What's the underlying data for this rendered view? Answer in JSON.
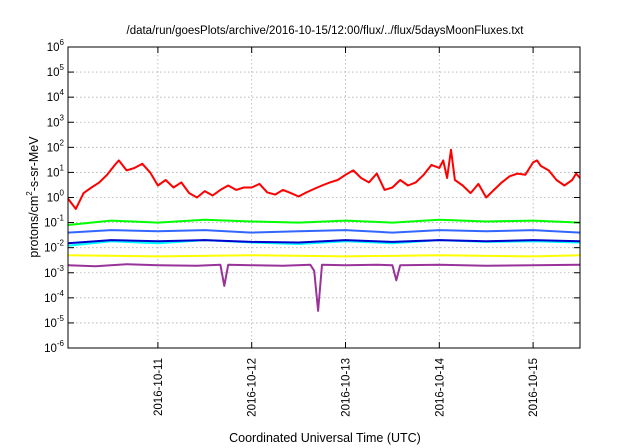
{
  "chart_data": {
    "type": "line",
    "title": "/data/run/goesPlots/archive/2016-10-15/12:00/flux/../flux/5daysMoonFluxes.txt",
    "xlabel": "Coordinated Universal Time (UTC)",
    "ylabel": {
      "base": "protons/cm",
      "sup": "2",
      "rest": "-s-sr-MeV"
    },
    "x_range": [
      "2016-10-10T01:00",
      "2016-10-15T12:00"
    ],
    "x_ticks": [
      {
        "value": "2016-10-11T00:00",
        "label": "2016-10-11"
      },
      {
        "value": "2016-10-12T00:00",
        "label": "2016-10-12"
      },
      {
        "value": "2016-10-13T00:00",
        "label": "2016-10-13"
      },
      {
        "value": "2016-10-14T00:00",
        "label": "2016-10-14"
      },
      {
        "value": "2016-10-15T00:00",
        "label": "2016-10-15"
      }
    ],
    "y_scale": "log",
    "y_range": [
      1e-06,
      1000000.0
    ],
    "y_ticks": [
      {
        "value": 1000000.0,
        "base": "10",
        "exp": "6"
      },
      {
        "value": 100000.0,
        "base": "10",
        "exp": "5"
      },
      {
        "value": 10000.0,
        "base": "10",
        "exp": "4"
      },
      {
        "value": 1000.0,
        "base": "10",
        "exp": "3"
      },
      {
        "value": 100.0,
        "base": "10",
        "exp": "2"
      },
      {
        "value": 10.0,
        "base": "10",
        "exp": "1"
      },
      {
        "value": 1.0,
        "base": "10",
        "exp": "0"
      },
      {
        "value": 0.1,
        "base": "10",
        "exp": "-1"
      },
      {
        "value": 0.01,
        "base": "10",
        "exp": "-2"
      },
      {
        "value": 0.001,
        "base": "10",
        "exp": "-3"
      },
      {
        "value": 0.0001,
        "base": "10",
        "exp": "-4"
      },
      {
        "value": 1e-05,
        "base": "10",
        "exp": "-5"
      },
      {
        "value": 1e-06,
        "base": "10",
        "exp": "-6"
      }
    ],
    "grid": true,
    "legend": "none",
    "series": [
      {
        "color": "#ff0000",
        "points": [
          [
            "2016-10-10T01:00",
            0.9
          ],
          [
            "2016-10-10T03:00",
            0.35
          ],
          [
            "2016-10-10T05:00",
            1.5
          ],
          [
            "2016-10-10T07:00",
            2.5
          ],
          [
            "2016-10-10T09:00",
            4
          ],
          [
            "2016-10-10T11:00",
            8
          ],
          [
            "2016-10-10T13:00",
            20
          ],
          [
            "2016-10-10T14:00",
            30
          ],
          [
            "2016-10-10T16:00",
            12
          ],
          [
            "2016-10-10T18:00",
            15
          ],
          [
            "2016-10-10T20:00",
            22
          ],
          [
            "2016-10-10T22:00",
            10
          ],
          [
            "2016-10-11T00:00",
            3
          ],
          [
            "2016-10-11T02:00",
            5
          ],
          [
            "2016-10-11T04:00",
            2.5
          ],
          [
            "2016-10-11T06:00",
            4
          ],
          [
            "2016-10-11T08:00",
            1.5
          ],
          [
            "2016-10-11T10:00",
            1.0
          ],
          [
            "2016-10-11T12:00",
            1.8
          ],
          [
            "2016-10-11T14:00",
            1.2
          ],
          [
            "2016-10-11T16:00",
            2.0
          ],
          [
            "2016-10-11T18:00",
            3
          ],
          [
            "2016-10-11T20:00",
            2
          ],
          [
            "2016-10-11T22:00",
            2.5
          ],
          [
            "2016-10-12T00:00",
            2.5
          ],
          [
            "2016-10-12T02:00",
            3.5
          ],
          [
            "2016-10-12T04:00",
            1.6
          ],
          [
            "2016-10-12T06:00",
            1.3
          ],
          [
            "2016-10-12T08:00",
            2.0
          ],
          [
            "2016-10-12T10:00",
            1.5
          ],
          [
            "2016-10-12T12:00",
            1.1
          ],
          [
            "2016-10-12T14:00",
            1.6
          ],
          [
            "2016-10-12T16:00",
            2.2
          ],
          [
            "2016-10-12T18:00",
            3
          ],
          [
            "2016-10-12T20:00",
            4
          ],
          [
            "2016-10-12T22:00",
            5
          ],
          [
            "2016-10-13T00:00",
            8
          ],
          [
            "2016-10-13T02:00",
            12
          ],
          [
            "2016-10-13T04:00",
            6
          ],
          [
            "2016-10-13T06:00",
            4
          ],
          [
            "2016-10-13T08:00",
            9
          ],
          [
            "2016-10-13T10:00",
            2
          ],
          [
            "2016-10-13T12:00",
            2.5
          ],
          [
            "2016-10-13T14:00",
            5
          ],
          [
            "2016-10-13T16:00",
            3
          ],
          [
            "2016-10-13T18:00",
            4
          ],
          [
            "2016-10-13T20:00",
            8
          ],
          [
            "2016-10-13T22:00",
            20
          ],
          [
            "2016-10-14T00:00",
            15
          ],
          [
            "2016-10-14T01:00",
            30
          ],
          [
            "2016-10-14T02:00",
            6
          ],
          [
            "2016-10-14T03:00",
            80
          ],
          [
            "2016-10-14T04:00",
            5
          ],
          [
            "2016-10-14T06:00",
            3
          ],
          [
            "2016-10-14T08:00",
            1.5
          ],
          [
            "2016-10-14T10:00",
            3.5
          ],
          [
            "2016-10-14T12:00",
            1.0
          ],
          [
            "2016-10-14T14:00",
            2.0
          ],
          [
            "2016-10-14T16:00",
            4
          ],
          [
            "2016-10-14T18:00",
            7
          ],
          [
            "2016-10-14T20:00",
            9
          ],
          [
            "2016-10-14T22:00",
            8
          ],
          [
            "2016-10-15T00:00",
            25
          ],
          [
            "2016-10-15T01:00",
            30
          ],
          [
            "2016-10-15T02:00",
            18
          ],
          [
            "2016-10-15T04:00",
            12
          ],
          [
            "2016-10-15T06:00",
            5
          ],
          [
            "2016-10-15T08:00",
            3
          ],
          [
            "2016-10-15T10:00",
            5
          ],
          [
            "2016-10-15T11:00",
            9
          ],
          [
            "2016-10-15T12:00",
            6
          ]
        ]
      },
      {
        "color": "#00ff00",
        "points": [
          [
            "2016-10-10T01:00",
            0.08
          ],
          [
            "2016-10-10T12:00",
            0.12
          ],
          [
            "2016-10-11T00:00",
            0.1
          ],
          [
            "2016-10-11T12:00",
            0.13
          ],
          [
            "2016-10-12T00:00",
            0.11
          ],
          [
            "2016-10-12T12:00",
            0.1
          ],
          [
            "2016-10-13T00:00",
            0.12
          ],
          [
            "2016-10-13T12:00",
            0.1
          ],
          [
            "2016-10-14T00:00",
            0.13
          ],
          [
            "2016-10-14T12:00",
            0.11
          ],
          [
            "2016-10-15T00:00",
            0.12
          ],
          [
            "2016-10-15T12:00",
            0.1
          ]
        ]
      },
      {
        "color": "#00ffff",
        "points": [
          [
            "2016-10-10T01:00",
            0.012
          ],
          [
            "2016-10-10T12:00",
            0.018
          ],
          [
            "2016-10-11T00:00",
            0.015
          ],
          [
            "2016-10-11T12:00",
            0.02
          ],
          [
            "2016-10-12T00:00",
            0.016
          ],
          [
            "2016-10-12T12:00",
            0.014
          ],
          [
            "2016-10-13T00:00",
            0.018
          ],
          [
            "2016-10-13T12:00",
            0.015
          ],
          [
            "2016-10-14T00:00",
            0.02
          ],
          [
            "2016-10-14T12:00",
            0.017
          ],
          [
            "2016-10-15T00:00",
            0.018
          ],
          [
            "2016-10-15T12:00",
            0.016
          ]
        ]
      },
      {
        "color": "#3366ff",
        "points": [
          [
            "2016-10-10T01:00",
            0.04
          ],
          [
            "2016-10-10T12:00",
            0.05
          ],
          [
            "2016-10-11T00:00",
            0.045
          ],
          [
            "2016-10-11T12:00",
            0.05
          ],
          [
            "2016-10-12T00:00",
            0.04
          ],
          [
            "2016-10-12T12:00",
            0.045
          ],
          [
            "2016-10-13T00:00",
            0.05
          ],
          [
            "2016-10-13T12:00",
            0.04
          ],
          [
            "2016-10-14T00:00",
            0.05
          ],
          [
            "2016-10-14T12:00",
            0.045
          ],
          [
            "2016-10-15T00:00",
            0.05
          ],
          [
            "2016-10-15T12:00",
            0.04
          ]
        ]
      },
      {
        "color": "#0000cc",
        "points": [
          [
            "2016-10-10T01:00",
            0.015
          ],
          [
            "2016-10-10T12:00",
            0.02
          ],
          [
            "2016-10-11T00:00",
            0.018
          ],
          [
            "2016-10-11T12:00",
            0.02
          ],
          [
            "2016-10-12T00:00",
            0.017
          ],
          [
            "2016-10-12T12:00",
            0.016
          ],
          [
            "2016-10-13T00:00",
            0.02
          ],
          [
            "2016-10-13T12:00",
            0.017
          ],
          [
            "2016-10-14T00:00",
            0.02
          ],
          [
            "2016-10-14T12:00",
            0.018
          ],
          [
            "2016-10-15T00:00",
            0.02
          ],
          [
            "2016-10-15T12:00",
            0.018
          ]
        ]
      },
      {
        "color": "#ffff00",
        "points": [
          [
            "2016-10-10T01:00",
            0.005
          ],
          [
            "2016-10-11T00:00",
            0.0045
          ],
          [
            "2016-10-12T00:00",
            0.005
          ],
          [
            "2016-10-13T00:00",
            0.0045
          ],
          [
            "2016-10-14T00:00",
            0.005
          ],
          [
            "2016-10-15T00:00",
            0.0045
          ],
          [
            "2016-10-15T12:00",
            0.005
          ]
        ]
      },
      {
        "color": "#993399",
        "points": [
          [
            "2016-10-10T01:00",
            0.002
          ],
          [
            "2016-10-10T08:00",
            0.0018
          ],
          [
            "2016-10-10T16:00",
            0.0022
          ],
          [
            "2016-10-11T00:00",
            0.002
          ],
          [
            "2016-10-11T10:00",
            0.0019
          ],
          [
            "2016-10-11T16:00",
            0.0021
          ],
          [
            "2016-10-11T17:00",
            0.0003
          ],
          [
            "2016-10-11T18:00",
            0.0021
          ],
          [
            "2016-10-12T00:00",
            0.002
          ],
          [
            "2016-10-12T08:00",
            0.0019
          ],
          [
            "2016-10-12T15:00",
            0.0021
          ],
          [
            "2016-10-12T16:00",
            0.0012
          ],
          [
            "2016-10-12T17:00",
            3e-05
          ],
          [
            "2016-10-12T18:00",
            0.0021
          ],
          [
            "2016-10-13T00:00",
            0.002
          ],
          [
            "2016-10-13T08:00",
            0.0021
          ],
          [
            "2016-10-13T12:00",
            0.002
          ],
          [
            "2016-10-13T13:00",
            0.0005
          ],
          [
            "2016-10-13T14:00",
            0.002
          ],
          [
            "2016-10-14T00:00",
            0.0021
          ],
          [
            "2016-10-14T12:00",
            0.0019
          ],
          [
            "2016-10-15T00:00",
            0.002
          ],
          [
            "2016-10-15T12:00",
            0.0021
          ]
        ]
      }
    ]
  }
}
